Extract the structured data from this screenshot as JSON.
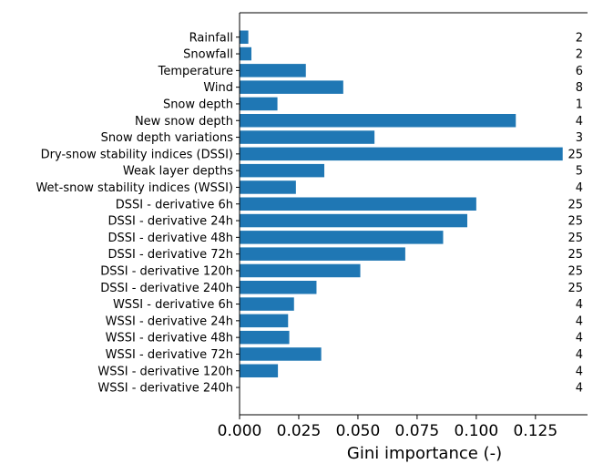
{
  "chart_data": {
    "type": "bar",
    "orientation": "horizontal",
    "title": "",
    "xlabel": "Gini importance (-)",
    "ylabel": "",
    "xlim": [
      0,
      0.147
    ],
    "xticks": [
      0.0,
      0.025,
      0.05,
      0.075,
      0.1,
      0.125
    ],
    "xtick_labels": [
      "0.000",
      "0.025",
      "0.050",
      "0.075",
      "0.100",
      "0.125"
    ],
    "grid": false,
    "bar_color": "#1f77b4",
    "categories": [
      "Rainfall",
      "Snowfall",
      "Temperature",
      "Wind",
      "Snow depth",
      "New snow depth",
      "Snow depth variations",
      "Dry-snow stability indices (DSSI)",
      "Weak layer depths",
      "Wet-snow stability indices (WSSI)",
      "DSSI - derivative 6h",
      "DSSI - derivative 24h",
      "DSSI - derivative 48h",
      "DSSI - derivative 72h",
      "DSSI - derivative 120h",
      "DSSI - derivative 240h",
      "WSSI - derivative 6h",
      "WSSI - derivative 24h",
      "WSSI - derivative 48h",
      "WSSI - derivative 72h",
      "WSSI - derivative 120h",
      "WSSI - derivative 240h"
    ],
    "values": [
      0.0037,
      0.005,
      0.028,
      0.0438,
      0.016,
      0.1167,
      0.057,
      0.1365,
      0.0358,
      0.0238,
      0.1,
      0.0962,
      0.086,
      0.07,
      0.051,
      0.0325,
      0.023,
      0.0205,
      0.021,
      0.0345,
      0.0162,
      0.0
    ],
    "counts": [
      "2",
      "2",
      "6",
      "8",
      "1",
      "4",
      "3",
      "25",
      "5",
      "4",
      "25",
      "25",
      "25",
      "25",
      "25",
      "25",
      "4",
      "4",
      "4",
      "4",
      "4",
      "4"
    ]
  }
}
